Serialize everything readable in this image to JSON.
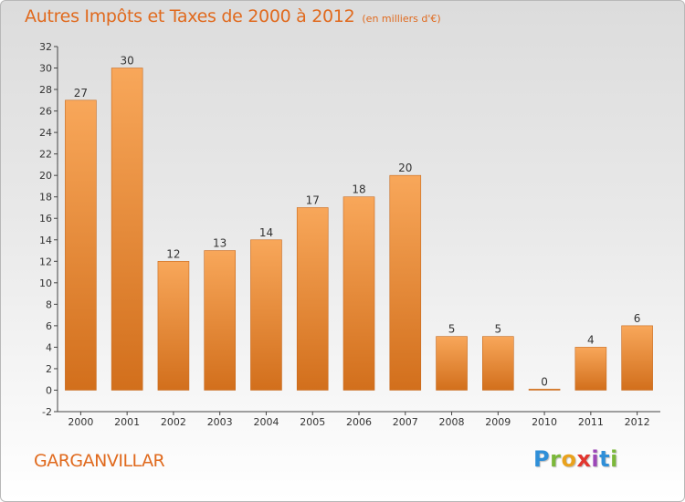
{
  "header": {
    "title": "Autres Impôts et Taxes de 2000 à 2012",
    "subtitle": "(en milliers d'€)"
  },
  "footer": {
    "place": "GARGANVILLAR",
    "logo": "Proxiti"
  },
  "colors": {
    "accent": "#e06a1e",
    "bar_top": "#f8a75a",
    "bar_bottom": "#d26f1c"
  },
  "chart_data": {
    "type": "bar",
    "title": "Autres Impôts et Taxes de 2000 à 2012",
    "subtitle": "(en milliers d'€)",
    "categories": [
      "2000",
      "2001",
      "2002",
      "2003",
      "2004",
      "2005",
      "2006",
      "2007",
      "2008",
      "2009",
      "2010",
      "2011",
      "2012"
    ],
    "values": [
      27,
      30,
      12,
      13,
      14,
      17,
      18,
      20,
      5,
      5,
      0,
      4,
      6
    ],
    "ylim": [
      -2,
      32
    ],
    "yticks": [
      -2,
      0,
      2,
      4,
      6,
      8,
      10,
      12,
      14,
      16,
      18,
      20,
      22,
      24,
      26,
      28,
      30,
      32
    ],
    "grid": false,
    "xlabel": "",
    "ylabel": ""
  }
}
